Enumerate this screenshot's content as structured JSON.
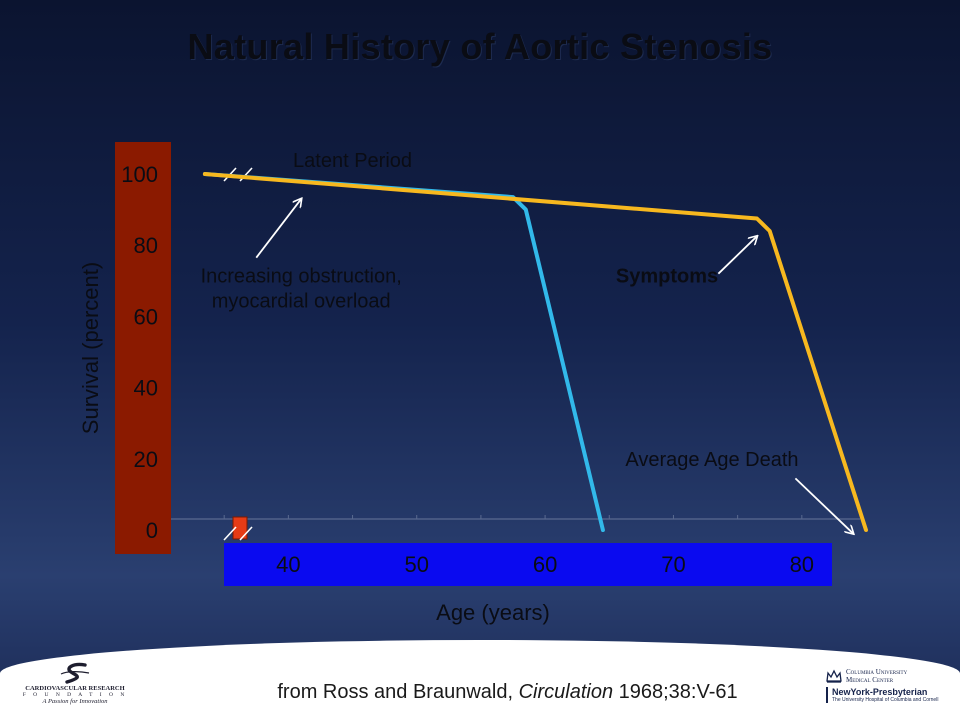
{
  "slide": {
    "title": "Natural History of Aortic Stenosis"
  },
  "citation": {
    "prefix": "from Ross and Braunwald, ",
    "journal": "Circulation",
    "suffix": " 1968;38:V-61"
  },
  "logos": {
    "left": {
      "name": "CARDIOVASCULAR RESEARCH",
      "sub": "F O U N D A T I O N",
      "tagline": "A Passion for Innovation"
    },
    "right": {
      "university": "Columbia University",
      "center": "Medical Center",
      "hospital": "NewYork-Presbyterian",
      "hospital_sub": "The University Hospital of Columbia and Cornell"
    }
  },
  "colors": {
    "y_axis_band": "#8b1a00",
    "x_axis_band": "#0a0af0",
    "latent_curve": "#f7b81f",
    "early_curve": "#32b9ea",
    "marker": "#e63b16"
  },
  "chart_data": {
    "type": "line",
    "title": "Natural History of Aortic Stenosis",
    "xlabel": "Age (years)",
    "ylabel": "Survival (percent)",
    "xlim": [
      30,
      85
    ],
    "ylim": [
      0,
      100
    ],
    "x_ticks": [
      40,
      50,
      60,
      70,
      80
    ],
    "y_ticks": [
      0,
      20,
      40,
      60,
      80,
      100
    ],
    "axis_breaks": true,
    "series": [
      {
        "x": [
          33.5,
          57.5,
          58.5,
          64.5
        ],
        "y": [
          100,
          93.5,
          90,
          0
        ],
        "color": "#32b9ea"
      },
      {
        "x": [
          33.5,
          76.5,
          77.5,
          85
        ],
        "y": [
          100,
          87.5,
          84,
          0
        ],
        "color": "#f7b81f"
      }
    ],
    "annotations": [
      {
        "text": "Latent Period",
        "x": 45,
        "y": 102,
        "bold": false
      },
      {
        "text": "Increasing obstruction,",
        "x": 41,
        "y": 69.5,
        "bold": false
      },
      {
        "text": "myocardial overload",
        "x": 41,
        "y": 62.5,
        "bold": false
      },
      {
        "text": "Symptoms",
        "x": 69.5,
        "y": 69.5,
        "bold": true
      },
      {
        "text": "Average Age Death",
        "x": 73,
        "y": 18,
        "bold": false
      }
    ],
    "arrows": [
      {
        "from": [
          37.5,
          76.5
        ],
        "to": [
          41,
          93
        ]
      },
      {
        "from": [
          73.5,
          72
        ],
        "to": [
          76.5,
          82.5
        ]
      },
      {
        "from": [
          79.5,
          14.5
        ],
        "to": [
          84,
          -1
        ]
      }
    ]
  }
}
